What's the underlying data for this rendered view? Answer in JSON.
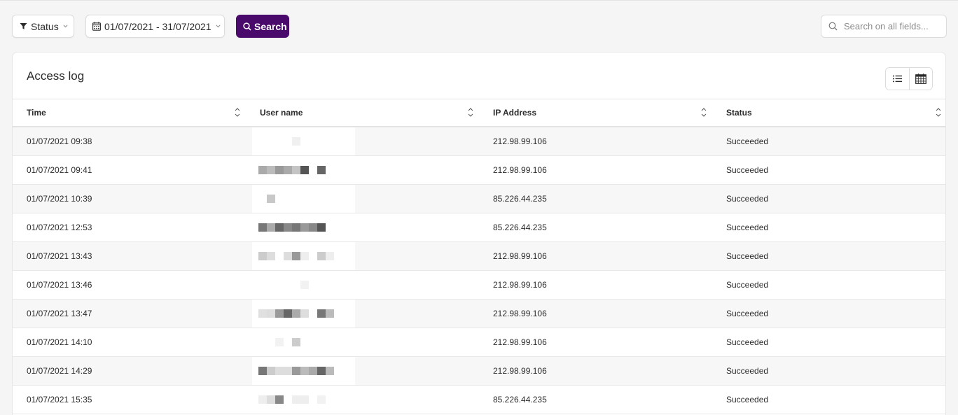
{
  "toolbar": {
    "status_label": "Status",
    "date_range_label": "01/07/2021 - 31/07/2021",
    "search_label": "Search",
    "search_placeholder": "Search on all fields..."
  },
  "card": {
    "title": "Access log"
  },
  "table": {
    "columns": [
      "Time",
      "User name",
      "IP Address",
      "Status"
    ],
    "rows": [
      {
        "time": "01/07/2021 09:38",
        "ip": "212.98.99.106",
        "status": "Succeeded"
      },
      {
        "time": "01/07/2021 09:41",
        "ip": "212.98.99.106",
        "status": "Succeeded"
      },
      {
        "time": "01/07/2021 10:39",
        "ip": "85.226.44.235",
        "status": "Succeeded"
      },
      {
        "time": "01/07/2021 12:53",
        "ip": "85.226.44.235",
        "status": "Succeeded"
      },
      {
        "time": "01/07/2021 13:43",
        "ip": "212.98.99.106",
        "status": "Succeeded"
      },
      {
        "time": "01/07/2021 13:46",
        "ip": "212.98.99.106",
        "status": "Succeeded"
      },
      {
        "time": "01/07/2021 13:47",
        "ip": "212.98.99.106",
        "status": "Succeeded"
      },
      {
        "time": "01/07/2021 14:10",
        "ip": "212.98.99.106",
        "status": "Succeeded"
      },
      {
        "time": "01/07/2021 14:29",
        "ip": "212.98.99.106",
        "status": "Succeeded"
      },
      {
        "time": "01/07/2021 15:35",
        "ip": "85.226.44.235",
        "status": "Succeeded"
      }
    ]
  },
  "icons": {
    "status": "filter-icon",
    "date": "calendar-icon",
    "search": "search-icon",
    "list_view": "list-icon",
    "calendar_view": "calendar-grid-icon"
  },
  "colors": {
    "accent": "#4a0a6b"
  }
}
